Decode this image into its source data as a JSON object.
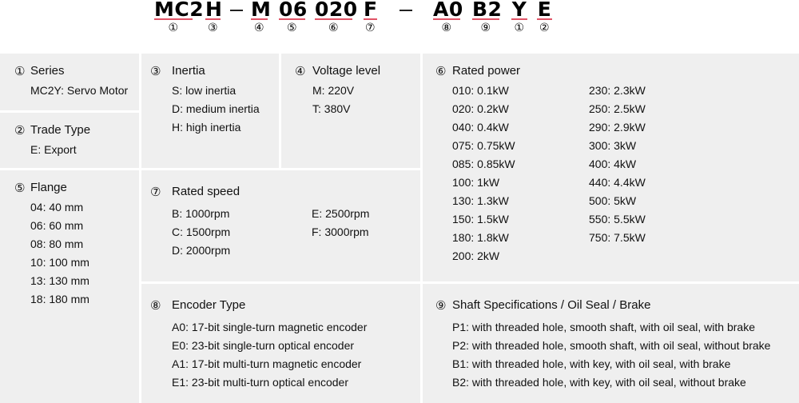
{
  "code": {
    "segments": [
      {
        "text": "MC2",
        "num": "①"
      },
      {
        "text": "H",
        "num": "③"
      },
      {
        "text": "M",
        "num": "④"
      },
      {
        "text": "06",
        "num": "⑤"
      },
      {
        "text": "020",
        "num": "⑥"
      },
      {
        "text": "F",
        "num": "⑦"
      },
      {
        "text": "A0",
        "num": "⑧"
      },
      {
        "text": "B2",
        "num": "⑨"
      },
      {
        "text": "Y",
        "num": "①"
      },
      {
        "text": "E",
        "num": "②"
      }
    ],
    "underline_color": "#e05366"
  },
  "sections": {
    "series": {
      "num": "①",
      "title": "Series",
      "items": [
        "MC2Y: Servo Motor"
      ]
    },
    "trade": {
      "num": "②",
      "title": "Trade Type",
      "items": [
        "E: Export"
      ]
    },
    "flange": {
      "num": "⑤",
      "title": "Flange",
      "items": [
        "04: 40 mm",
        "06: 60 mm",
        "08: 80 mm",
        "10: 100 mm",
        "13: 130 mm",
        "18: 180 mm"
      ]
    },
    "inertia": {
      "num": "③",
      "title": "Inertia",
      "items": [
        "S: low inertia",
        "D: medium inertia",
        "H: high inertia"
      ]
    },
    "voltage": {
      "num": "④",
      "title": "Voltage level",
      "items": [
        "M: 220V",
        "T: 380V"
      ]
    },
    "speed": {
      "num": "⑦",
      "title": "Rated speed",
      "col1": [
        "B: 1000rpm",
        "C: 1500rpm",
        "D: 2000rpm"
      ],
      "col2": [
        "E: 2500rpm",
        "F: 3000rpm"
      ]
    },
    "encoder": {
      "num": "⑧",
      "title": "Encoder Type",
      "items": [
        "A0: 17-bit single-turn magnetic encoder",
        "E0: 23-bit single-turn optical encoder",
        "A1: 17-bit multi-turn magnetic encoder",
        "E1: 23-bit multi-turn optical encoder"
      ]
    },
    "power": {
      "num": "⑥",
      "title": "Rated power",
      "col1": [
        "010: 0.1kW",
        "020: 0.2kW",
        "040: 0.4kW",
        "075: 0.75kW",
        "085: 0.85kW",
        "100: 1kW",
        "130: 1.3kW",
        "150: 1.5kW",
        "180: 1.8kW",
        "200: 2kW"
      ],
      "col2": [
        "230: 2.3kW",
        "250: 2.5kW",
        "290: 2.9kW",
        "300: 3kW",
        "400: 4kW",
        "440: 4.4kW",
        "500: 5kW",
        "550: 5.5kW",
        "750: 7.5kW"
      ]
    },
    "shaft": {
      "num": "⑨",
      "title": "Shaft Specifications / Oil Seal / Brake",
      "items": [
        "P1: with threaded hole, smooth shaft, with oil seal, with brake",
        "P2: with threaded hole, smooth shaft, with oil seal, without brake",
        "B1: with threaded hole, with key, with oil seal, with brake",
        "B2: with threaded hole, with key, with oil seal, without brake"
      ]
    }
  }
}
